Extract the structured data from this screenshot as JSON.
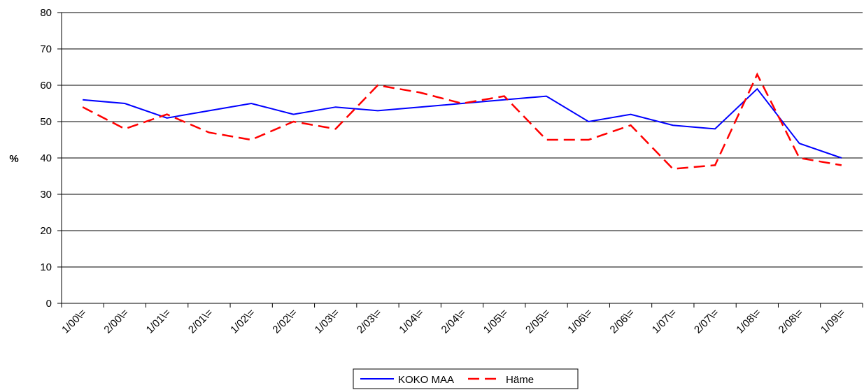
{
  "chart_data": {
    "type": "line",
    "y_label": "%",
    "categories": [
      "1/00\\=",
      "2/00\\=",
      "1/01\\=",
      "2/01\\=",
      "1/02\\=",
      "2/02\\=",
      "1/03\\=",
      "2/03\\=",
      "1/04\\=",
      "2/04\\=",
      "1/05\\=",
      "2/05\\=",
      "1/06\\=",
      "2/06\\=",
      "1/07\\=",
      "2/07\\=",
      "1/08\\=",
      "2/08\\=",
      "1/09\\="
    ],
    "series": [
      {
        "name": "KOKO MAA",
        "color": "#0000ff",
        "dash": false,
        "values": [
          56,
          55,
          51,
          53,
          55,
          52,
          54,
          53,
          54,
          55,
          56,
          57,
          50,
          52,
          49,
          48,
          59,
          44,
          40
        ]
      },
      {
        "name": "Häme",
        "color": "#ff0000",
        "dash": true,
        "values": [
          54,
          48,
          52,
          47,
          45,
          50,
          48,
          60,
          58,
          55,
          57,
          45,
          45,
          49,
          37,
          38,
          63,
          40,
          38
        ]
      }
    ],
    "ylim": [
      0,
      80
    ],
    "yticks": [
      0,
      10,
      20,
      30,
      40,
      50,
      60,
      70,
      80
    ],
    "grid": true
  }
}
